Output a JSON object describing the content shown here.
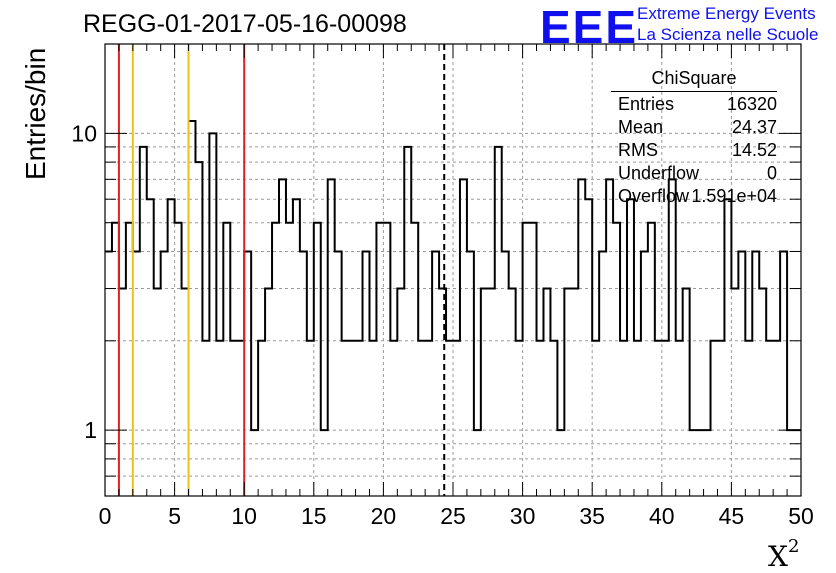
{
  "title": "REGG-01-2017-05-16-00098",
  "logo": {
    "mark": "EEE",
    "line1": "Extreme Energy Events",
    "line2": "La Scienza nelle Scuole"
  },
  "stats": {
    "title": "ChiSquare",
    "rows": [
      {
        "label": "Entries",
        "value": "16320"
      },
      {
        "label": "Mean",
        "value": "24.37"
      },
      {
        "label": "RMS",
        "value": "14.52"
      },
      {
        "label": "Underflow",
        "value": "0"
      },
      {
        "label": "Overflow",
        "value": "1.591e+04"
      }
    ]
  },
  "chart_data": {
    "type": "histogram",
    "title": "REGG-01-2017-05-16-00098",
    "xlabel": "X",
    "xlabel_superscript": "2",
    "ylabel": "Entries/bin",
    "xlim": [
      0,
      50
    ],
    "ylim": [
      0.6,
      20
    ],
    "ylog": true,
    "grid": true,
    "bin_width": 0.5,
    "x_ticks": [
      "0",
      "5",
      "10",
      "15",
      "20",
      "25",
      "30",
      "35",
      "40",
      "45",
      "50"
    ],
    "y_ticks": [
      "1",
      "10"
    ],
    "values": [
      4,
      5,
      3,
      5,
      4,
      9,
      6,
      3,
      4,
      6,
      5,
      3,
      11,
      8,
      2,
      10,
      2,
      5,
      2,
      2,
      4,
      1,
      2,
      3,
      5,
      7,
      5,
      6,
      4,
      2,
      5,
      1,
      7,
      4,
      2,
      2,
      2,
      4,
      2,
      5,
      5,
      2,
      3,
      9,
      5,
      2,
      2,
      4,
      3,
      2,
      2,
      7,
      4,
      1,
      3,
      3,
      9,
      4,
      3,
      2,
      5,
      5,
      2,
      3,
      2,
      1,
      3,
      3,
      7,
      6,
      2,
      4,
      7,
      5,
      2,
      6,
      2,
      4,
      5,
      2,
      2,
      7,
      2,
      3,
      1,
      1,
      1,
      2,
      2,
      6,
      3,
      4,
      2,
      4,
      3,
      2,
      2,
      4,
      1,
      1
    ],
    "vertical_lines": [
      {
        "x": 1,
        "color": "#dd2222",
        "style": "solid"
      },
      {
        "x": 2,
        "color": "#f0c020",
        "style": "solid"
      },
      {
        "x": 6,
        "color": "#f0c020",
        "style": "solid"
      },
      {
        "x": 10,
        "color": "#dd2222",
        "style": "solid"
      },
      {
        "x": 24.37,
        "color": "#000000",
        "style": "dashed"
      }
    ]
  }
}
